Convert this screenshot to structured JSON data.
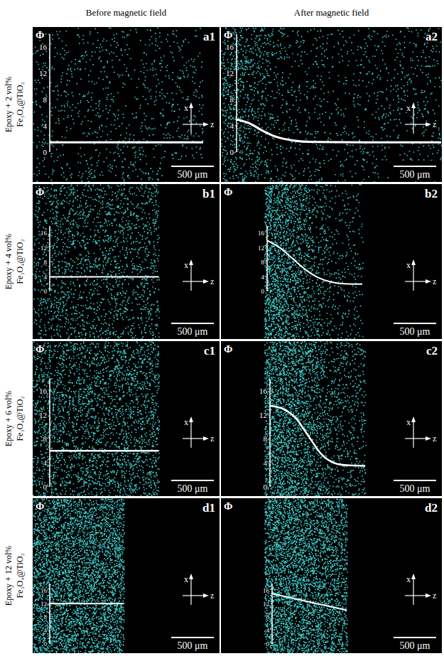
{
  "column_titles": [
    "Before magnetic field",
    "After magnetic field"
  ],
  "row_labels": [
    [
      "Epoxy + 2 vol%",
      "Fe₃O₄@TiO₂"
    ],
    [
      "Epoxy + 4 vol%",
      "Fe₃O₄@TiO₂"
    ],
    [
      "Epoxy + 6 vol%",
      "Fe₃O₄@TiO₂"
    ],
    [
      "Epoxy + 12 vol%",
      "Fe₃O₄@TiO₂"
    ]
  ],
  "chart_data": [
    {
      "type": "line",
      "panel": "a1",
      "y_label": "Φ",
      "x": [
        0,
        1800
      ],
      "values": [
        1.5,
        1.5
      ],
      "xlim": [
        0,
        1800
      ],
      "ylim": [
        0,
        18
      ],
      "yticks": [
        0,
        4,
        8,
        12,
        16
      ],
      "tick_labels": "y",
      "color": "#ffffff",
      "scale_bar": {
        "value": 500,
        "label": "500 μm"
      },
      "axes_labels": {
        "vertical": "x",
        "horizontal": "z"
      }
    },
    {
      "type": "line",
      "panel": "a2",
      "y_label": "Φ",
      "x": [
        0,
        150,
        300,
        450,
        650,
        900,
        1500,
        2400
      ],
      "values": [
        5,
        4.4,
        3.3,
        2.4,
        1.8,
        1.55,
        1.5,
        1.5
      ],
      "xlim": [
        0,
        2400
      ],
      "ylim": [
        0,
        18
      ],
      "yticks": [
        0,
        4,
        8,
        12,
        16
      ],
      "tick_labels": "y",
      "color": "#ffffff",
      "scale_bar": {
        "value": 500,
        "label": "500 μm"
      },
      "axes_labels": {
        "vertical": "x",
        "horizontal": "z"
      }
    },
    {
      "type": "line",
      "panel": "b1",
      "y_label": "Φ",
      "x": [
        0,
        1280
      ],
      "values": [
        4,
        4
      ],
      "xlim": [
        0,
        1280
      ],
      "ylim": [
        0,
        18
      ],
      "yticks": [
        0,
        4,
        8,
        12,
        16
      ],
      "tick_labels": "y",
      "color": "#ffffff",
      "scale_bar": {
        "value": 500,
        "label": "500 μm"
      },
      "axes_labels": {
        "vertical": "x",
        "horizontal": "z"
      }
    },
    {
      "type": "line",
      "panel": "b2",
      "y_label": "Φ",
      "x": [
        0,
        150,
        300,
        450,
        600,
        750,
        900,
        1120
      ],
      "values": [
        14,
        12,
        9,
        6,
        3.8,
        2.6,
        2.1,
        2
      ],
      "xlim": [
        0,
        1120
      ],
      "ylim": [
        0,
        18
      ],
      "yticks": [
        0,
        4,
        8,
        12,
        16
      ],
      "tick_labels": "y",
      "color": "#ffffff",
      "scale_bar": {
        "value": 500,
        "label": "500 μm"
      },
      "axes_labels": {
        "vertical": "x",
        "horizontal": "z"
      }
    },
    {
      "type": "line",
      "panel": "c1",
      "y_label": "Φ",
      "x": [
        0,
        1280
      ],
      "values": [
        6,
        6
      ],
      "xlim": [
        0,
        1280
      ],
      "ylim": [
        0,
        18
      ],
      "yticks": [
        0,
        4,
        8,
        12,
        16
      ],
      "tick_labels": "y",
      "color": "#ffffff",
      "scale_bar": {
        "value": 500,
        "label": "500 μm"
      },
      "axes_labels": {
        "vertical": "x",
        "horizontal": "z"
      }
    },
    {
      "type": "line",
      "panel": "c2",
      "y_label": "Φ",
      "x": [
        0,
        150,
        300,
        450,
        600,
        750,
        900,
        1120
      ],
      "values": [
        13.5,
        13,
        11.5,
        8.5,
        5.5,
        4,
        3.6,
        3.5
      ],
      "xlim": [
        0,
        1120
      ],
      "ylim": [
        0,
        18
      ],
      "yticks": [
        0,
        4,
        8,
        12,
        16
      ],
      "tick_labels": "y",
      "color": "#ffffff",
      "scale_bar": {
        "value": 500,
        "label": "500 μm"
      },
      "axes_labels": {
        "vertical": "x",
        "horizontal": "z"
      }
    },
    {
      "type": "line",
      "panel": "d1",
      "y_label": "Φ",
      "x": [
        0,
        870
      ],
      "values": [
        12,
        12
      ],
      "xlim": [
        0,
        870
      ],
      "ylim": [
        0,
        18
      ],
      "yticks": [
        0,
        4,
        8,
        12,
        16
      ],
      "tick_labels": "y",
      "color": "#ffffff",
      "scale_bar": {
        "value": 500,
        "label": "500 μm"
      },
      "axes_labels": {
        "vertical": "x",
        "horizontal": "z"
      }
    },
    {
      "type": "line",
      "panel": "d2",
      "y_label": "Φ",
      "x": [
        0,
        880
      ],
      "values": [
        15,
        10
      ],
      "xlim": [
        0,
        880
      ],
      "ylim": [
        0,
        18
      ],
      "yticks": [
        0,
        4,
        8,
        12,
        16
      ],
      "tick_labels": "y",
      "color": "#ffffff",
      "scale_bar": {
        "value": 500,
        "label": "500 μm"
      },
      "axes_labels": {
        "vertical": "x",
        "horizontal": "z"
      }
    }
  ]
}
